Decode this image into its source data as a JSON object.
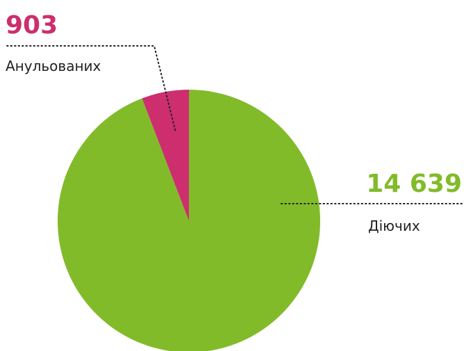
{
  "chart_data": {
    "type": "pie",
    "categories": [
      "Діючих",
      "Анульованих"
    ],
    "values": [
      14639,
      903
    ],
    "value_labels": [
      "14 639",
      "903"
    ],
    "colors": [
      "#82bb2a",
      "#cc2e6e"
    ]
  }
}
